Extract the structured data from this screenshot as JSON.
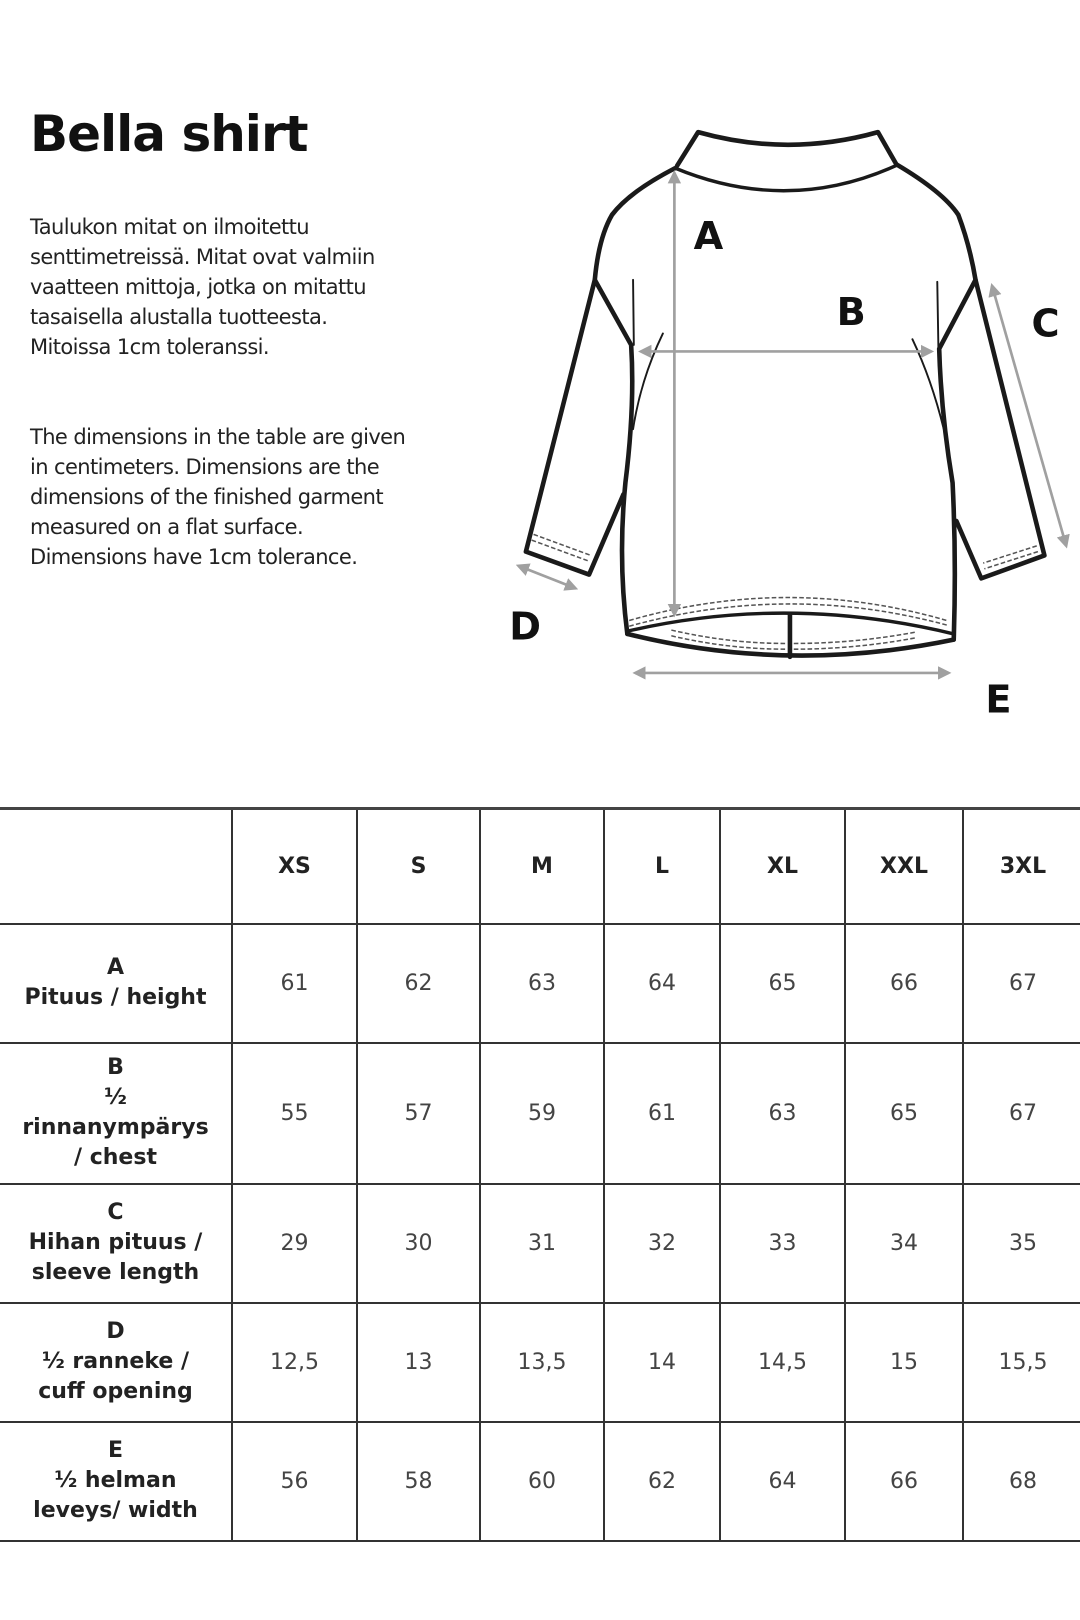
{
  "title": "Bella shirt",
  "description_fi": [
    "Taulukon mitat on ilmoitettu",
    "senttimetreissä. Mitat ovat valmiin",
    "vaatteen mittoja, jotka on mitattu",
    "tasaisella alustalla tuotteesta.",
    "Mitoissa 1cm toleranssi."
  ],
  "description_en": [
    "The dimensions in the table are given",
    "in centimeters. Dimensions are the",
    "dimensions of the finished garment",
    "measured on a flat surface.",
    "Dimensions have 1cm tolerance."
  ],
  "diagram": {
    "labels": {
      "a": "A",
      "b": "B",
      "c": "C",
      "d": "D",
      "e": "E"
    },
    "arrow_color": "#a0a0a0"
  },
  "table": {
    "sizes": [
      "XS",
      "S",
      "M",
      "L",
      "XL",
      "XXL",
      "3XL"
    ],
    "rows": [
      {
        "label": [
          "A",
          "Pituus / height"
        ],
        "values": [
          "61",
          "62",
          "63",
          "64",
          "65",
          "66",
          "67"
        ]
      },
      {
        "label": [
          "B",
          "½",
          "rinnanympärys",
          "/ chest"
        ],
        "values": [
          "55",
          "57",
          "59",
          "61",
          "63",
          "65",
          "67"
        ]
      },
      {
        "label": [
          "C",
          "Hihan pituus /",
          "sleeve length"
        ],
        "values": [
          "29",
          "30",
          "31",
          "32",
          "33",
          "34",
          "35"
        ]
      },
      {
        "label": [
          "D",
          "½ ranneke /",
          "cuff opening"
        ],
        "values": [
          "12,5",
          "13",
          "13,5",
          "14",
          "14,5",
          "15",
          "15,5"
        ]
      },
      {
        "label": [
          "E",
          "½ helman",
          "leveys/ width"
        ],
        "values": [
          "56",
          "58",
          "60",
          "62",
          "64",
          "66",
          "68"
        ]
      }
    ]
  }
}
